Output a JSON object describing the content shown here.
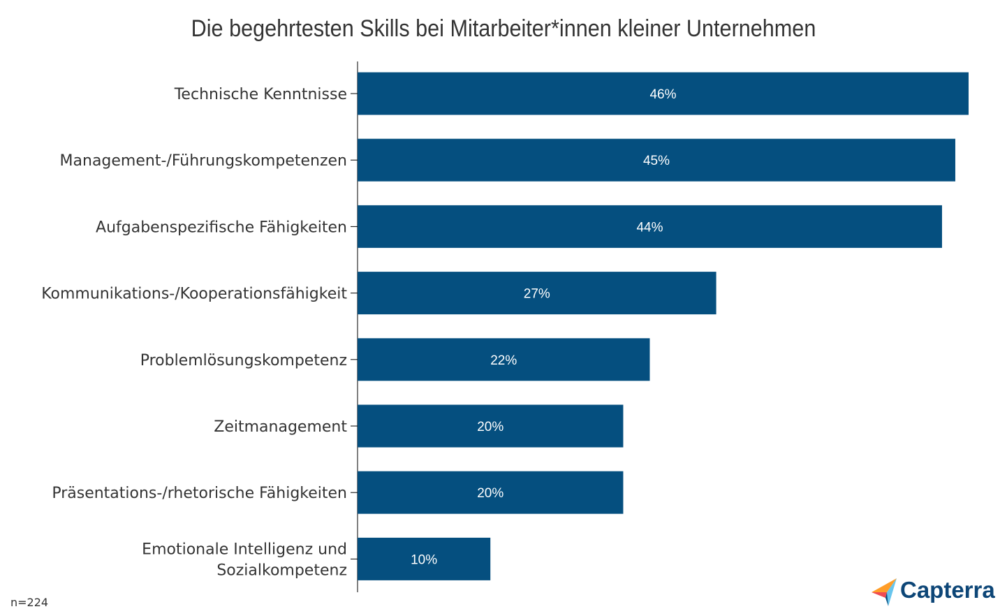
{
  "chart_data": {
    "type": "bar",
    "orientation": "horizontal",
    "title": "Die begehrtesten Skills bei Mitarbeiter*innen kleiner Unternehmen",
    "categories": [
      [
        "Technische Kenntnisse"
      ],
      [
        "Management-/Führungskompetenzen"
      ],
      [
        "Aufgabenspezifische Fähigkeiten"
      ],
      [
        "Kommunikations-/Kooperationsfähigkeit"
      ],
      [
        "Problemlösungskompetenz"
      ],
      [
        "Zeitmanagement"
      ],
      [
        "Präsentations-/rhetorische Fähigkeiten"
      ],
      [
        "Emotionale Intelligenz und",
        "Sozialkompetenz"
      ]
    ],
    "values": [
      46,
      45,
      44,
      27,
      22,
      20,
      20,
      10
    ],
    "data_labels": [
      "46%",
      "45%",
      "44%",
      "27%",
      "22%",
      "20%",
      "20%",
      "10%"
    ],
    "xlim": [
      0,
      46
    ],
    "xlabel": "",
    "ylabel": "",
    "grid": false,
    "bar_color": "#054f7f"
  },
  "footnote": "n=224",
  "logo": "Capterra"
}
